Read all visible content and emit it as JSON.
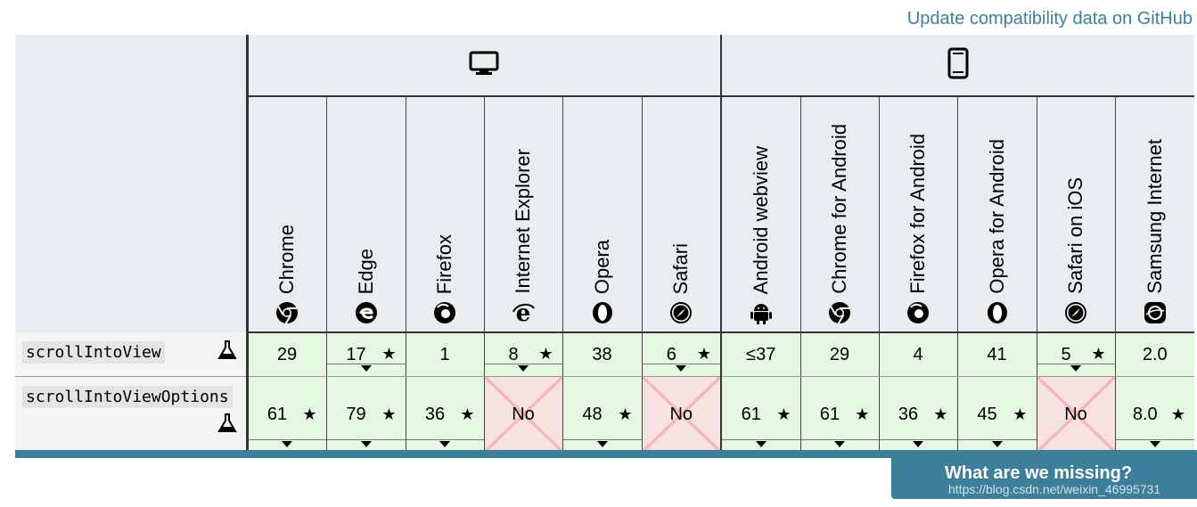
{
  "links": {
    "github": "Update compatibility data on GitHub"
  },
  "platforms": [
    {
      "name": "desktop-icon"
    },
    {
      "name": "mobile-icon"
    }
  ],
  "browsers": [
    {
      "name": "Chrome",
      "icon": "chrome-icon"
    },
    {
      "name": "Edge",
      "icon": "edge-icon"
    },
    {
      "name": "Firefox",
      "icon": "firefox-icon"
    },
    {
      "name": "Internet Explorer",
      "icon": "ie-icon"
    },
    {
      "name": "Opera",
      "icon": "opera-icon"
    },
    {
      "name": "Safari",
      "icon": "safari-icon"
    },
    {
      "name": "Android webview",
      "icon": "android-icon"
    },
    {
      "name": "Chrome for Android",
      "icon": "chrome-icon"
    },
    {
      "name": "Firefox for Android",
      "icon": "firefox-icon"
    },
    {
      "name": "Opera for Android",
      "icon": "opera-icon"
    },
    {
      "name": "Safari on iOS",
      "icon": "safari-icon"
    },
    {
      "name": "Samsung Internet",
      "icon": "samsung-internet-icon"
    }
  ],
  "features": [
    {
      "name": "scrollIntoView",
      "experimental_icon": "flask-icon",
      "cells": [
        {
          "value": "29",
          "support": "yes",
          "star": false,
          "toggle": false
        },
        {
          "value": "17",
          "support": "yes",
          "star": true,
          "toggle": true
        },
        {
          "value": "1",
          "support": "yes",
          "star": false,
          "toggle": false
        },
        {
          "value": "8",
          "support": "yes",
          "star": true,
          "toggle": true
        },
        {
          "value": "38",
          "support": "yes",
          "star": false,
          "toggle": false
        },
        {
          "value": "6",
          "support": "yes",
          "star": true,
          "toggle": true
        },
        {
          "value": "≤37",
          "support": "yes",
          "star": false,
          "toggle": false
        },
        {
          "value": "29",
          "support": "yes",
          "star": false,
          "toggle": false
        },
        {
          "value": "4",
          "support": "yes",
          "star": false,
          "toggle": false
        },
        {
          "value": "41",
          "support": "yes",
          "star": false,
          "toggle": false
        },
        {
          "value": "5",
          "support": "yes",
          "star": true,
          "toggle": true
        },
        {
          "value": "2.0",
          "support": "yes",
          "star": false,
          "toggle": false
        }
      ]
    },
    {
      "name": "scrollIntoViewOptions",
      "experimental_icon": "flask-icon",
      "cells": [
        {
          "value": "61",
          "support": "yes",
          "star": true,
          "toggle": true
        },
        {
          "value": "79",
          "support": "yes",
          "star": true,
          "toggle": true
        },
        {
          "value": "36",
          "support": "yes",
          "star": true,
          "toggle": true
        },
        {
          "value": "No",
          "support": "no",
          "star": false,
          "toggle": false
        },
        {
          "value": "48",
          "support": "yes",
          "star": true,
          "toggle": true
        },
        {
          "value": "No",
          "support": "no",
          "star": false,
          "toggle": false
        },
        {
          "value": "61",
          "support": "yes",
          "star": true,
          "toggle": true
        },
        {
          "value": "61",
          "support": "yes",
          "star": true,
          "toggle": true
        },
        {
          "value": "36",
          "support": "yes",
          "star": true,
          "toggle": true
        },
        {
          "value": "45",
          "support": "yes",
          "star": true,
          "toggle": true
        },
        {
          "value": "No",
          "support": "no",
          "star": false,
          "toggle": false
        },
        {
          "value": "8.0",
          "support": "yes",
          "star": true,
          "toggle": true
        }
      ]
    }
  ],
  "footer": {
    "missing": "What are we missing?",
    "watermark": "https://blog.csdn.net/weixin_46995731"
  },
  "colors": {
    "accent": "#3d7e9a",
    "yes": "#e4f8e1",
    "no": "#f8e1e1",
    "header": "#e8edf0"
  }
}
